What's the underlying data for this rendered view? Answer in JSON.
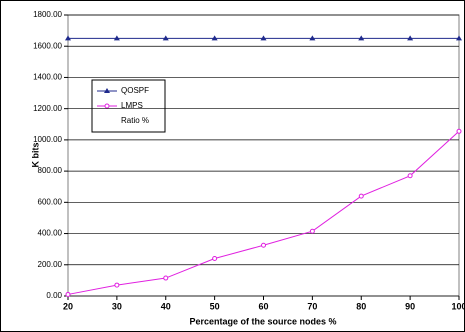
{
  "chart_data": {
    "type": "line",
    "x_label": "Percentage of the source nodes %",
    "y_label": "K bits",
    "x": [
      20,
      30,
      40,
      50,
      60,
      70,
      80,
      90,
      100
    ],
    "xlim": [
      20,
      100
    ],
    "xticks": [
      20,
      30,
      40,
      50,
      60,
      70,
      80,
      90,
      100
    ],
    "ylim": [
      0,
      1800
    ],
    "yticks": [
      {
        "value": 0,
        "label": "0.00"
      },
      {
        "value": 200,
        "label": "200.00"
      },
      {
        "value": 400,
        "label": "400.00"
      },
      {
        "value": 600,
        "label": "600.00"
      },
      {
        "value": 800,
        "label": "800.00"
      },
      {
        "value": 1000,
        "label": "1000.00"
      },
      {
        "value": 1200,
        "label": "1200.00"
      },
      {
        "value": 1400,
        "label": "1400.00"
      },
      {
        "value": 1600,
        "label": "1600.00"
      },
      {
        "value": 1800,
        "label": "1800.00"
      }
    ],
    "grid": true,
    "series": [
      {
        "name": "QOSPF",
        "color": "#1f2a8c",
        "values": [
          1650,
          1650,
          1650,
          1650,
          1650,
          1650,
          1650,
          1650,
          1650
        ]
      },
      {
        "name": "LMPS",
        "color": "#e020e0",
        "values": [
          10,
          70,
          115,
          240,
          325,
          415,
          640,
          770,
          1055
        ]
      },
      {
        "name": "Ratio %",
        "color": "#ffffff",
        "values": [
          null,
          null,
          null,
          null,
          null,
          null,
          null,
          null,
          null
        ]
      }
    ]
  }
}
